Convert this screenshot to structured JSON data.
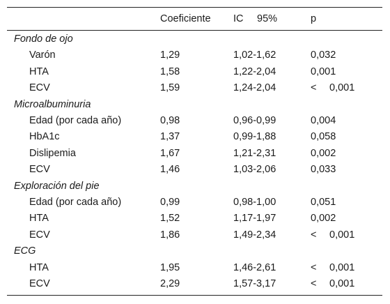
{
  "header": {
    "coef": "Coeficiente",
    "ic_label": "IC",
    "ic_pct": "95%",
    "p": "p"
  },
  "groups": [
    {
      "title": "Fondo de ojo",
      "rows": [
        {
          "label": "Varón",
          "coef": "1,29",
          "ic": "1,02-1,62",
          "p_prefix": "",
          "p": "0,032"
        },
        {
          "label": "HTA",
          "coef": "1,58",
          "ic": "1,22-2,04",
          "p_prefix": "",
          "p": "0,001"
        },
        {
          "label": "ECV",
          "coef": "1,59",
          "ic": "1,24-2,04",
          "p_prefix": "<",
          "p": "0,001"
        }
      ]
    },
    {
      "title": "Microalbuminuria",
      "rows": [
        {
          "label": "Edad (por cada año)",
          "coef": "0,98",
          "ic": "0,96-0,99",
          "p_prefix": "",
          "p": "0,004"
        },
        {
          "label": "HbA1c",
          "coef": "1,37",
          "ic": "0,99-1,88",
          "p_prefix": "",
          "p": "0,058"
        },
        {
          "label": "Dislipemia",
          "coef": "1,67",
          "ic": "1,21-2,31",
          "p_prefix": "",
          "p": "0,002"
        },
        {
          "label": "ECV",
          "coef": "1,46",
          "ic": "1,03-2,06",
          "p_prefix": "",
          "p": "0,033"
        }
      ]
    },
    {
      "title": "Exploración del pie",
      "rows": [
        {
          "label": "Edad (por cada año)",
          "coef": "0,99",
          "ic": "0,98-1,00",
          "p_prefix": "",
          "p": "0,051"
        },
        {
          "label": "HTA",
          "coef": "1,52",
          "ic": "1,17-1,97",
          "p_prefix": "",
          "p": "0,002"
        },
        {
          "label": "ECV",
          "coef": "1,86",
          "ic": "1,49-2,34",
          "p_prefix": "<",
          "p": "0,001"
        }
      ]
    },
    {
      "title": "ECG",
      "rows": [
        {
          "label": "HTA",
          "coef": "1,95",
          "ic": "1,46-2,61",
          "p_prefix": "<",
          "p": "0,001"
        },
        {
          "label": "ECV",
          "coef": "2,29",
          "ic": "1,57-3,17",
          "p_prefix": "<",
          "p": "0,001"
        }
      ]
    }
  ]
}
